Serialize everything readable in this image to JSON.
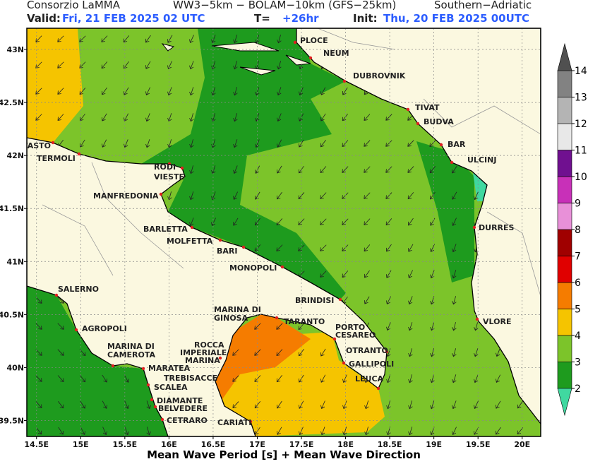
{
  "header": {
    "producer": "Consorzio LaMMA",
    "model": "WW3−5km − BOLAM−10km (GFS−25km)",
    "region": "Southern−Adriatic",
    "valid_label": "Valid:",
    "valid_time": "Fri, 21 FEB 2025  02 UTC",
    "lead_label": "T=",
    "lead_time": "+26hr",
    "init_label": "Init:",
    "init_time": "Thu, 20 FEB 2025 00UTC"
  },
  "map": {
    "xlim": [
      14.39,
      20.21
    ],
    "ylim": [
      39.35,
      43.2
    ],
    "xticks": [
      {
        "value": 14.5,
        "label": "14.5E"
      },
      {
        "value": 15,
        "label": "15E"
      },
      {
        "value": 15.5,
        "label": "15.5E"
      },
      {
        "value": 16,
        "label": "16E"
      },
      {
        "value": 16.5,
        "label": "16.5E"
      },
      {
        "value": 17,
        "label": "17E"
      },
      {
        "value": 17.5,
        "label": "17.5E"
      },
      {
        "value": 18,
        "label": "18E"
      },
      {
        "value": 18.5,
        "label": "18.5E"
      },
      {
        "value": 19,
        "label": "19E"
      },
      {
        "value": 19.5,
        "label": "19.5E"
      },
      {
        "value": 20,
        "label": "20E"
      }
    ],
    "yticks": [
      {
        "value": 39.5,
        "label": "39.5N"
      },
      {
        "value": 40,
        "label": "40N"
      },
      {
        "value": 40.5,
        "label": "40.5N"
      },
      {
        "value": 41,
        "label": "41N"
      },
      {
        "value": 41.5,
        "label": "41.5N"
      },
      {
        "value": 42,
        "label": "42N"
      },
      {
        "value": 42.5,
        "label": "42.5N"
      },
      {
        "value": 43,
        "label": "43N"
      }
    ],
    "cities": [
      "PLOCE",
      "NEUM",
      "DUBROVNIK",
      "TIVAT",
      "BUDVA",
      "BAR",
      "ULCINJ",
      "DURRES",
      "VLORE",
      "VASTO",
      "TERMOLI",
      "RODI",
      "VIESTE",
      "MANFREDONIA",
      "BARLETTA",
      "MOLFETTA",
      "BARI",
      "MONOPOLI",
      "BRINDISI",
      "MARINA DI",
      "GINOSA",
      "TARANTO",
      "PORTO",
      "CESAREO",
      "OTRANTO",
      "GALLIPOLI",
      "LEUCA",
      "SALERNO",
      "AGROPOLI",
      "MARINA DI",
      "CAMEROTA",
      "ROCCA",
      "IMPERIALE",
      "MARINA",
      "MARATEA",
      "TREBISACCE",
      "SCALEA",
      "DIAMANTE",
      "BELVEDERE",
      "CETRARO",
      "CARIATI"
    ]
  },
  "colorbar": {
    "ticks": [
      2,
      3,
      4,
      5,
      6,
      7,
      8,
      9,
      10,
      11,
      12,
      13,
      14
    ],
    "colors": [
      "#1e9b1e",
      "#7cc42a",
      "#f5c400",
      "#f57c00",
      "#e00000",
      "#a00000",
      "#e890d8",
      "#c830b8",
      "#701090",
      "#e8e8e8",
      "#b4b4b4",
      "#828282"
    ],
    "under": "#40d8a0",
    "over": "#505050"
  },
  "footer": "Mean Wave Period [s] + Mean Wave Direction"
}
